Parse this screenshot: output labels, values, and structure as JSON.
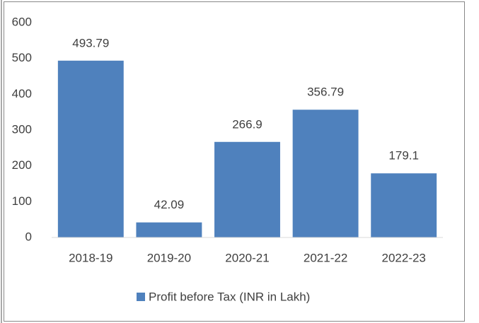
{
  "chart_data": {
    "type": "bar",
    "categories": [
      "2018-19",
      "2019-20",
      "2020-21",
      "2021-22",
      "2022-23"
    ],
    "series": [
      {
        "name": "Profit before Tax (INR in Lakh)",
        "color": "#4f81bd",
        "values": [
          493.79,
          42.09,
          266.9,
          356.79,
          179.1
        ]
      }
    ],
    "ylim": [
      0,
      600
    ],
    "yticks": [
      0,
      100,
      200,
      300,
      400,
      500,
      600
    ],
    "grid": false,
    "legend": "bottom",
    "data_labels": true
  }
}
